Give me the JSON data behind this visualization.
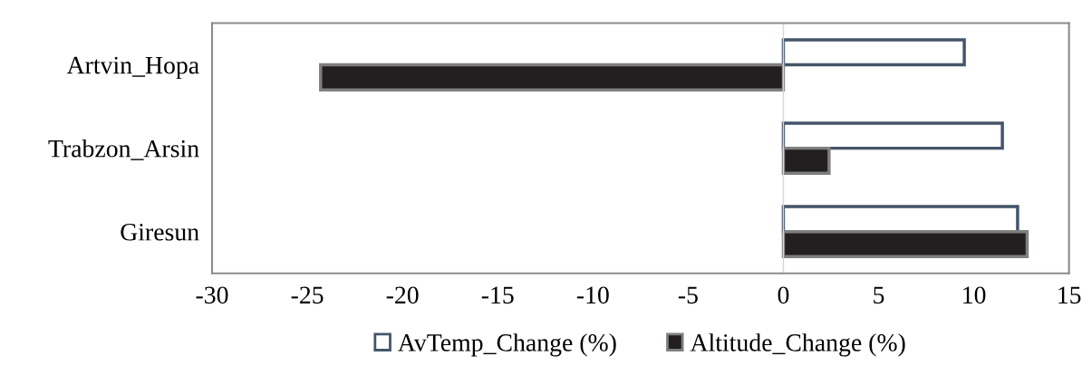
{
  "chart_data": {
    "type": "bar",
    "orientation": "horizontal",
    "categories": [
      "Artvin_Hopa",
      "Trabzon_Arsin",
      "Giresun"
    ],
    "series": [
      {
        "name": "AvTemp_Change (%)",
        "color": "#ffffff",
        "values": [
          9.5,
          11.5,
          12.3
        ]
      },
      {
        "name": "Altitude_Change (%)",
        "color": "#231f20",
        "values": [
          -24.3,
          2.4,
          12.8
        ]
      }
    ],
    "xlim": [
      -30,
      15
    ],
    "xticks": [
      -30,
      -25,
      -20,
      -15,
      -10,
      -5,
      0,
      5,
      10,
      15
    ],
    "ref_lines": [
      {
        "axis": "x",
        "value": 0,
        "color": "#d0d8e4"
      }
    ],
    "legend": "bottom"
  }
}
